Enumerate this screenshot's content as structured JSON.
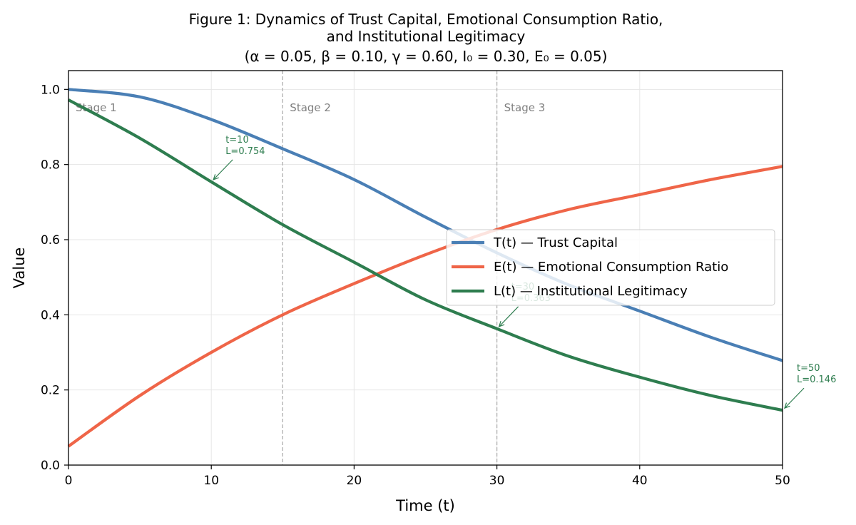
{
  "chart_data": {
    "type": "line",
    "title_lines": [
      "Figure 1: Dynamics of Trust Capital, Emotional Consumption Ratio,",
      "and Institutional Legitimacy",
      "(α = 0.05,  β = 0.10,  γ = 0.60,  I₀ = 0.30,  E₀ = 0.05)"
    ],
    "xlabel": "Time (t)",
    "ylabel": "Value",
    "xlim": [
      0,
      50
    ],
    "ylim": [
      0,
      1.05
    ],
    "xticks": [
      0,
      10,
      20,
      30,
      40,
      50
    ],
    "yticks": [
      0.0,
      0.2,
      0.4,
      0.6,
      0.8,
      1.0
    ],
    "xtick_labels": [
      "0",
      "10",
      "20",
      "30",
      "40",
      "50"
    ],
    "ytick_labels": [
      "0.0",
      "0.2",
      "0.4",
      "0.6",
      "0.8",
      "1.0"
    ],
    "grid": true,
    "legend_position": "center-right",
    "stage_lines": [
      15,
      30
    ],
    "stage_labels": [
      {
        "text": "Stage 1",
        "x": 0
      },
      {
        "text": "Stage 2",
        "x": 15
      },
      {
        "text": "Stage 3",
        "x": 30
      }
    ],
    "series": [
      {
        "name": "T(t) — Trust Capital",
        "color": "#4a7fb5",
        "x": [
          0,
          5,
          10,
          15,
          20,
          25,
          30,
          35,
          40,
          45,
          50
        ],
        "y": [
          1.0,
          0.98,
          0.92,
          0.842,
          0.76,
          0.66,
          0.565,
          0.48,
          0.41,
          0.34,
          0.278
        ]
      },
      {
        "name": "E(t) — Emotional Consumption Ratio",
        "color": "#ef6548",
        "x": [
          0,
          5,
          10,
          15,
          20,
          25,
          30,
          35,
          40,
          45,
          50
        ],
        "y": [
          0.05,
          0.185,
          0.3,
          0.4,
          0.483,
          0.56,
          0.627,
          0.68,
          0.72,
          0.76,
          0.795
        ]
      },
      {
        "name": "L(t) — Institutional Legitimacy",
        "color": "#2e7d4f",
        "x": [
          0,
          5,
          10,
          15,
          20,
          25,
          30,
          35,
          40,
          45,
          50
        ],
        "y": [
          0.972,
          0.87,
          0.754,
          0.64,
          0.54,
          0.44,
          0.363,
          0.29,
          0.234,
          0.185,
          0.146
        ]
      }
    ],
    "annotations": [
      {
        "lines": [
          "t=10",
          "L=0.754"
        ],
        "x": 10,
        "y": 0.754
      },
      {
        "lines": [
          "t=30",
          "L=0.363"
        ],
        "x": 30,
        "y": 0.363
      },
      {
        "lines": [
          "t=50",
          "L=0.146"
        ],
        "x": 50,
        "y": 0.146
      }
    ]
  }
}
